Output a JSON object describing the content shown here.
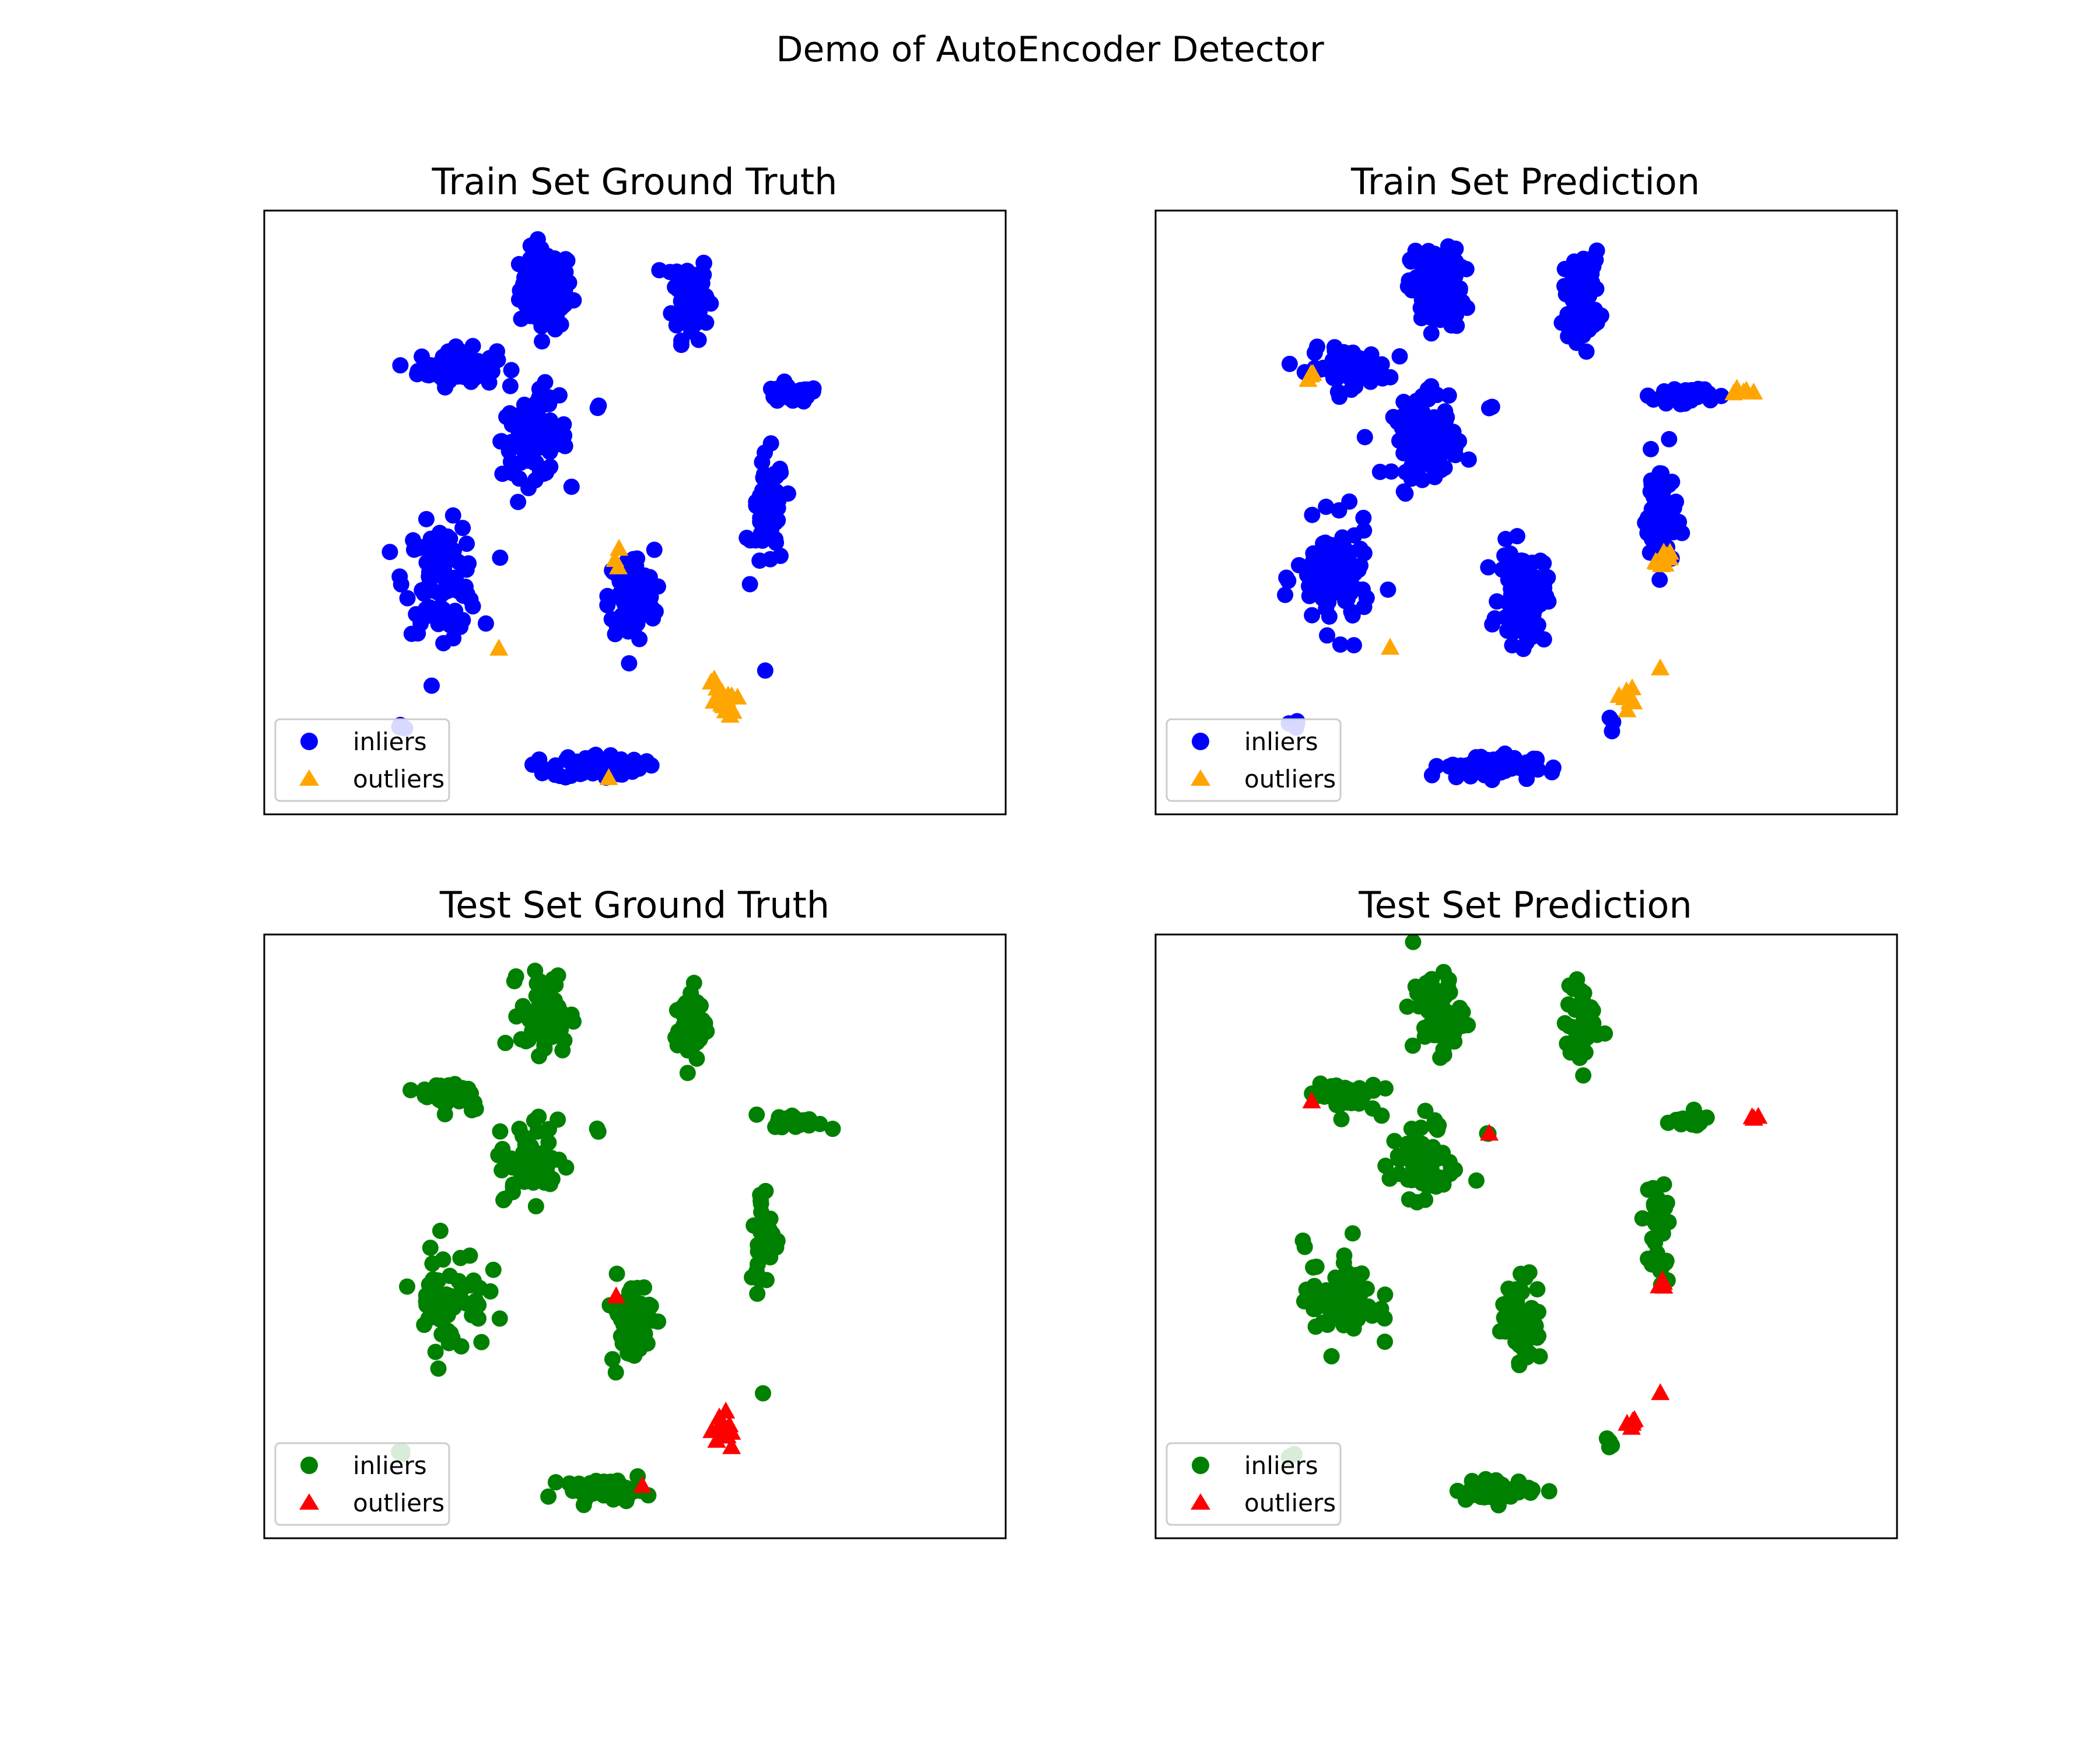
{
  "figure": {
    "title": "Demo of AutoEncoder Detector"
  },
  "colors": {
    "train_inlier": "#0000ff",
    "train_outlier": "#ffa500",
    "test_inlier": "#008000",
    "test_outlier": "#ff0000"
  },
  "chart_data": [
    {
      "type": "scatter",
      "title": "Train Set Ground Truth",
      "legend": {
        "position": "lower-left",
        "entries": [
          "inliers",
          "outliers"
        ]
      },
      "axes_visible": false,
      "xlim": [
        0,
        100
      ],
      "ylim": [
        0,
        100
      ],
      "series": [
        {
          "name": "inliers",
          "marker": "circle",
          "color": "#0000ff",
          "clusters": [
            {
              "cx": 38,
              "cy": 87,
              "sx": 3.2,
              "sy": 6,
              "n": 110
            },
            {
              "cx": 57.5,
              "cy": 86,
              "sx": 2.2,
              "sy": 6.5,
              "n": 80
            },
            {
              "cx": 26,
              "cy": 74,
              "sx": 4.8,
              "sy": 2.8,
              "n": 70
            },
            {
              "cx": 36.5,
              "cy": 62,
              "sx": 4,
              "sy": 5.5,
              "n": 100
            },
            {
              "cx": 71,
              "cy": 69.5,
              "sx": 3.5,
              "sy": 1.2,
              "n": 45
            },
            {
              "cx": 68,
              "cy": 50,
              "sx": 2,
              "sy": 8.5,
              "n": 60
            },
            {
              "cx": 24,
              "cy": 39,
              "sx": 4.5,
              "sy": 8,
              "n": 100
            },
            {
              "cx": 49.5,
              "cy": 36,
              "sx": 2.8,
              "sy": 7,
              "n": 100
            },
            {
              "cx": 45,
              "cy": 8,
              "sx": 5.5,
              "sy": 1.8,
              "n": 80
            },
            {
              "cx": 18.5,
              "cy": 14.5,
              "sx": 0.8,
              "sy": 0.8,
              "n": 4
            },
            {
              "cx": 45,
              "cy": 67.5,
              "sx": 0.5,
              "sy": 0.5,
              "n": 2
            },
            {
              "cx": 67.5,
              "cy": 24,
              "sx": 0.4,
              "sy": 0.4,
              "n": 1
            },
            {
              "cx": 37,
              "cy": 69,
              "sx": 2.5,
              "sy": 2,
              "n": 8
            }
          ]
        },
        {
          "name": "outliers",
          "marker": "triangle",
          "color": "#ffa500",
          "clusters": [
            {
              "cx": 47.5,
              "cy": 42.5,
              "sx": 0.4,
              "sy": 1.5,
              "n": 3
            },
            {
              "cx": 31.5,
              "cy": 27.5,
              "sx": 0.2,
              "sy": 0.2,
              "n": 1
            },
            {
              "cx": 61.5,
              "cy": 18.5,
              "sx": 1.8,
              "sy": 4,
              "n": 15
            },
            {
              "cx": 46.5,
              "cy": 6,
              "sx": 0.2,
              "sy": 0.2,
              "n": 1
            }
          ]
        }
      ]
    },
    {
      "type": "scatter",
      "title": "Train Set Prediction",
      "legend": {
        "position": "lower-left",
        "entries": [
          "inliers",
          "outliers"
        ]
      },
      "axes_visible": false,
      "xlim": [
        0,
        100
      ],
      "ylim": [
        0,
        100
      ],
      "series": [
        {
          "name": "inliers",
          "marker": "circle",
          "color": "#0000ff",
          "clusters": [
            {
              "cx": 38,
              "cy": 87,
              "sx": 3.2,
              "sy": 6,
              "n": 110
            },
            {
              "cx": 57.5,
              "cy": 86,
              "sx": 2.2,
              "sy": 6.5,
              "n": 80
            },
            {
              "cx": 26,
              "cy": 74,
              "sx": 4.8,
              "sy": 2.8,
              "n": 70
            },
            {
              "cx": 36.5,
              "cy": 62,
              "sx": 4,
              "sy": 5.5,
              "n": 100
            },
            {
              "cx": 71,
              "cy": 69.5,
              "sx": 3.5,
              "sy": 1.2,
              "n": 45
            },
            {
              "cx": 68,
              "cy": 50,
              "sx": 2,
              "sy": 8.5,
              "n": 60
            },
            {
              "cx": 24,
              "cy": 39,
              "sx": 4.5,
              "sy": 8,
              "n": 100
            },
            {
              "cx": 49.5,
              "cy": 36,
              "sx": 2.8,
              "sy": 7,
              "n": 100
            },
            {
              "cx": 45,
              "cy": 8,
              "sx": 5.5,
              "sy": 1.8,
              "n": 80
            },
            {
              "cx": 18.5,
              "cy": 14.5,
              "sx": 0.8,
              "sy": 0.8,
              "n": 4
            },
            {
              "cx": 45,
              "cy": 67.5,
              "sx": 0.5,
              "sy": 0.5,
              "n": 2
            },
            {
              "cx": 61,
              "cy": 14.5,
              "sx": 0.8,
              "sy": 1.5,
              "n": 3
            },
            {
              "cx": 37,
              "cy": 69,
              "sx": 2.5,
              "sy": 2,
              "n": 8
            }
          ]
        },
        {
          "name": "outliers",
          "marker": "triangle",
          "color": "#ffa500",
          "clusters": [
            {
              "cx": 21,
              "cy": 72.5,
              "sx": 0.4,
              "sy": 1,
              "n": 4
            },
            {
              "cx": 78.5,
              "cy": 70,
              "sx": 1.5,
              "sy": 0.6,
              "n": 5
            },
            {
              "cx": 68.5,
              "cy": 42,
              "sx": 0.8,
              "sy": 1.2,
              "n": 10
            },
            {
              "cx": 31.5,
              "cy": 27.5,
              "sx": 0.2,
              "sy": 0.2,
              "n": 1
            },
            {
              "cx": 63.5,
              "cy": 19,
              "sx": 1,
              "sy": 2.5,
              "n": 8
            },
            {
              "cx": 68,
              "cy": 24,
              "sx": 0.2,
              "sy": 0.2,
              "n": 1
            }
          ]
        }
      ]
    },
    {
      "type": "scatter",
      "title": "Test Set Ground Truth",
      "legend": {
        "position": "lower-left",
        "entries": [
          "inliers",
          "outliers"
        ]
      },
      "axes_visible": false,
      "xlim": [
        0,
        100
      ],
      "ylim": [
        0,
        100
      ],
      "series": [
        {
          "name": "inliers",
          "marker": "circle",
          "color": "#008000",
          "clusters": [
            {
              "cx": 38,
              "cy": 87,
              "sx": 3,
              "sy": 6,
              "n": 70
            },
            {
              "cx": 57.5,
              "cy": 85,
              "sx": 2,
              "sy": 6,
              "n": 45
            },
            {
              "cx": 25.5,
              "cy": 73.5,
              "sx": 4,
              "sy": 2.5,
              "n": 40
            },
            {
              "cx": 36,
              "cy": 62,
              "sx": 4,
              "sy": 5,
              "n": 60
            },
            {
              "cx": 72,
              "cy": 69,
              "sx": 3,
              "sy": 1,
              "n": 25
            },
            {
              "cx": 67.5,
              "cy": 50,
              "sx": 1.8,
              "sy": 8,
              "n": 35
            },
            {
              "cx": 25,
              "cy": 40,
              "sx": 4.5,
              "sy": 8,
              "n": 60
            },
            {
              "cx": 49.5,
              "cy": 36,
              "sx": 2.5,
              "sy": 6.5,
              "n": 60
            },
            {
              "cx": 46,
              "cy": 8,
              "sx": 5,
              "sy": 1.5,
              "n": 50
            },
            {
              "cx": 18.5,
              "cy": 14,
              "sx": 0.6,
              "sy": 0.6,
              "n": 3
            },
            {
              "cx": 45,
              "cy": 67.5,
              "sx": 0.5,
              "sy": 0.5,
              "n": 2
            },
            {
              "cx": 67.5,
              "cy": 24,
              "sx": 0.4,
              "sy": 0.4,
              "n": 1
            },
            {
              "cx": 37,
              "cy": 69,
              "sx": 2.5,
              "sy": 2,
              "n": 6
            }
          ]
        },
        {
          "name": "outliers",
          "marker": "triangle",
          "color": "#ff0000",
          "clusters": [
            {
              "cx": 47.5,
              "cy": 40,
              "sx": 0.2,
              "sy": 0.2,
              "n": 1
            },
            {
              "cx": 62,
              "cy": 18,
              "sx": 1.5,
              "sy": 3.5,
              "n": 12
            },
            {
              "cx": 51,
              "cy": 8.5,
              "sx": 0.2,
              "sy": 0.2,
              "n": 1
            }
          ]
        }
      ]
    },
    {
      "type": "scatter",
      "title": "Test Set Prediction",
      "legend": {
        "position": "lower-left",
        "entries": [
          "inliers",
          "outliers"
        ]
      },
      "axes_visible": false,
      "xlim": [
        0,
        100
      ],
      "ylim": [
        0,
        100
      ],
      "series": [
        {
          "name": "inliers",
          "marker": "circle",
          "color": "#008000",
          "clusters": [
            {
              "cx": 38,
              "cy": 87,
              "sx": 3,
              "sy": 6,
              "n": 70
            },
            {
              "cx": 57.5,
              "cy": 85,
              "sx": 2,
              "sy": 6,
              "n": 45
            },
            {
              "cx": 25.5,
              "cy": 73.5,
              "sx": 4,
              "sy": 2.5,
              "n": 40
            },
            {
              "cx": 36,
              "cy": 62,
              "sx": 4,
              "sy": 5,
              "n": 60
            },
            {
              "cx": 72,
              "cy": 69,
              "sx": 3,
              "sy": 1,
              "n": 25
            },
            {
              "cx": 67.5,
              "cy": 50,
              "sx": 1.8,
              "sy": 8,
              "n": 35
            },
            {
              "cx": 25,
              "cy": 40,
              "sx": 4.5,
              "sy": 8,
              "n": 60
            },
            {
              "cx": 49.5,
              "cy": 36,
              "sx": 2.5,
              "sy": 6.5,
              "n": 60
            },
            {
              "cx": 46,
              "cy": 8,
              "sx": 5,
              "sy": 1.5,
              "n": 50
            },
            {
              "cx": 18.5,
              "cy": 14,
              "sx": 0.6,
              "sy": 0.6,
              "n": 3
            },
            {
              "cx": 45,
              "cy": 67.5,
              "sx": 0.5,
              "sy": 0.5,
              "n": 2
            },
            {
              "cx": 61,
              "cy": 15.5,
              "sx": 0.8,
              "sy": 1.5,
              "n": 4
            },
            {
              "cx": 37,
              "cy": 69,
              "sx": 2.5,
              "sy": 2,
              "n": 6
            }
          ]
        },
        {
          "name": "outliers",
          "marker": "triangle",
          "color": "#ff0000",
          "clusters": [
            {
              "cx": 21,
              "cy": 72.5,
              "sx": 0.2,
              "sy": 0.2,
              "n": 1
            },
            {
              "cx": 45,
              "cy": 67,
              "sx": 0.2,
              "sy": 0.2,
              "n": 1
            },
            {
              "cx": 81,
              "cy": 69.5,
              "sx": 0.5,
              "sy": 0.3,
              "n": 3
            },
            {
              "cx": 68.5,
              "cy": 42,
              "sx": 0.6,
              "sy": 1,
              "n": 6
            },
            {
              "cx": 64,
              "cy": 19,
              "sx": 0.8,
              "sy": 2,
              "n": 5
            },
            {
              "cx": 68,
              "cy": 24,
              "sx": 0.2,
              "sy": 0.2,
              "n": 1
            }
          ]
        }
      ]
    }
  ]
}
